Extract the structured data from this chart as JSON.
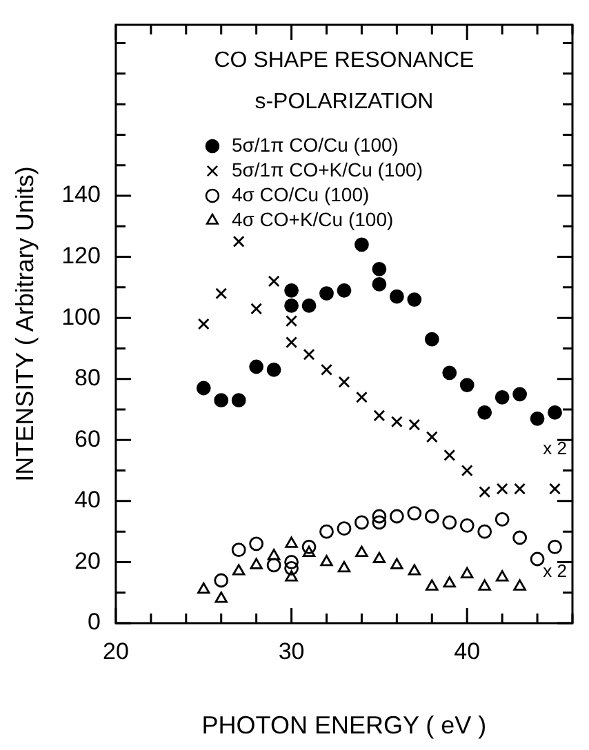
{
  "chart_data": {
    "type": "scatter",
    "title": "CO SHAPE RESONANCE",
    "subtitle": "s-POLARIZATION",
    "xlabel": "PHOTON ENERGY ( eV )",
    "ylabel": "INTENSITY ( Arbitrary Units)",
    "xlim": [
      20,
      46
    ],
    "ylim": [
      0,
      196
    ],
    "xticks": [
      20,
      {
        "value": 22,
        "label": null
      },
      {
        "value": 24,
        "label": null
      },
      {
        "value": 26,
        "label": null
      },
      {
        "value": 28,
        "label": null
      },
      30,
      {
        "value": 32,
        "label": null
      },
      {
        "value": 34,
        "label": null
      },
      {
        "value": 36,
        "label": null
      },
      {
        "value": 38,
        "label": null
      },
      40,
      {
        "value": 42,
        "label": null
      },
      {
        "value": 44,
        "label": null
      },
      {
        "value": 46,
        "label": null
      }
    ],
    "yticks": [
      0,
      {
        "value": 10,
        "label": null
      },
      20,
      {
        "value": 30,
        "label": null
      },
      40,
      {
        "value": 50,
        "label": null
      },
      60,
      {
        "value": 70,
        "label": null
      },
      80,
      {
        "value": 90,
        "label": null
      },
      100,
      {
        "value": 110,
        "label": null
      },
      120,
      {
        "value": 130,
        "label": null
      },
      140,
      {
        "value": 150,
        "label": null
      },
      {
        "value": 160,
        "label": null
      },
      {
        "value": 170,
        "label": null
      },
      {
        "value": 180,
        "label": null
      },
      {
        "value": 190,
        "label": null
      }
    ],
    "grid": false,
    "legend": "top",
    "series": [
      {
        "name": "5σ/1π CO/Cu (100)",
        "color": "#000000",
        "marker": "circle",
        "x": [
          25,
          26,
          27,
          28,
          29,
          30,
          30,
          31,
          32,
          33,
          34,
          35,
          35,
          36,
          37,
          38,
          39,
          40,
          41,
          42,
          43,
          44,
          45
        ],
        "values": [
          77,
          73,
          73,
          84,
          83,
          109,
          104,
          104,
          108,
          109,
          124,
          116,
          111,
          107,
          106,
          93,
          82,
          78,
          69,
          74,
          75,
          67,
          69
        ]
      },
      {
        "name": "5σ/1π CO+K/Cu (100)",
        "color": "#000000",
        "marker": "cross",
        "x": [
          25,
          26,
          27,
          28,
          29,
          30,
          30,
          31,
          32,
          33,
          34,
          35,
          36,
          37,
          38,
          39,
          40,
          41,
          42,
          43,
          45
        ],
        "values": [
          98,
          108,
          125,
          103,
          112,
          99,
          92,
          88,
          83,
          79,
          74,
          68,
          66,
          65,
          61,
          55,
          50,
          43,
          44,
          44,
          44
        ]
      },
      {
        "name": "4σ CO/Cu (100)",
        "color": "#000000",
        "marker": "circle",
        "x": [
          26,
          27,
          28,
          29,
          30,
          30,
          31,
          32,
          33,
          34,
          35,
          35,
          36,
          37,
          38,
          39,
          40,
          41,
          42,
          43,
          44,
          45
        ],
        "values": [
          14,
          24,
          26,
          19,
          20,
          18,
          25,
          30,
          31,
          33,
          35,
          33,
          35,
          36,
          35,
          33,
          32,
          30,
          34,
          28,
          21,
          25
        ]
      },
      {
        "name": "4σ CO+K/Cu (100)",
        "color": "#000000",
        "marker": "triangle",
        "x": [
          25,
          26,
          27,
          28,
          29,
          30,
          30,
          31,
          32,
          33,
          34,
          35,
          36,
          37,
          38,
          39,
          40,
          41,
          42,
          43
        ],
        "values": [
          11,
          8,
          17,
          19,
          22,
          26,
          15,
          23,
          20,
          18,
          23,
          21,
          19,
          17,
          12,
          13,
          16,
          12,
          15,
          12
        ]
      }
    ],
    "annotations": [
      "x 2",
      "x 2"
    ]
  }
}
